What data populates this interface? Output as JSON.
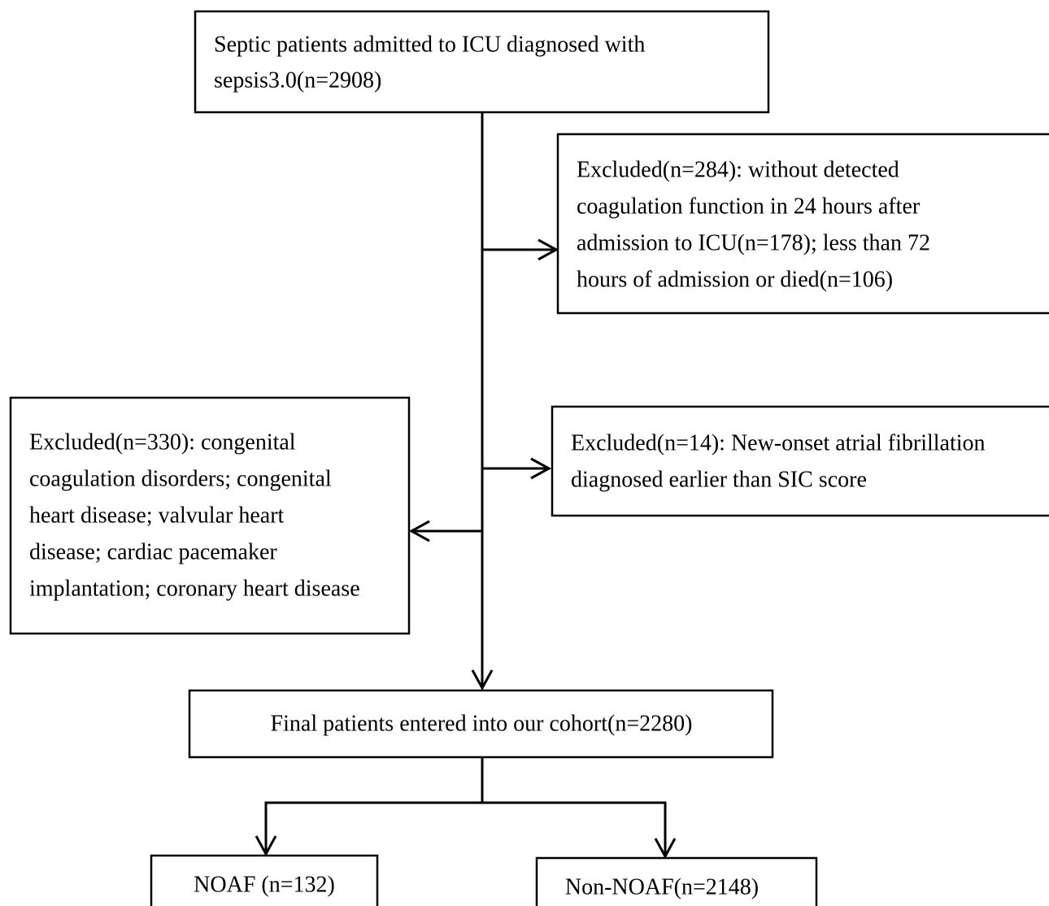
{
  "nodes": [
    {
      "lines": [
        "Septic patients admitted to ICU diagnosed with",
        "sepsis3.0(n=2908)"
      ]
    },
    {
      "lines": [
        "Excluded(n=284): without detected",
        "coagulation function in 24 hours after",
        "admission to ICU(n=178); less than 72",
        "hours of admission or died(n=106)"
      ]
    },
    {
      "lines": [
        "Excluded(n=330): congenital",
        "coagulation disorders; congenital",
        "heart disease; valvular heart",
        "disease; cardiac pacemaker",
        "implantation; coronary heart disease"
      ]
    },
    {
      "lines": [
        "Excluded(n=14): New-onset atrial fibrillation",
        "diagnosed earlier than SIC score"
      ]
    },
    {
      "lines": [
        "Final patients entered into our cohort(n=2280)"
      ]
    },
    {
      "lines": [
        "NOAF (n=132)"
      ]
    },
    {
      "lines": [
        "Non-NOAF(n=2148)"
      ]
    }
  ]
}
